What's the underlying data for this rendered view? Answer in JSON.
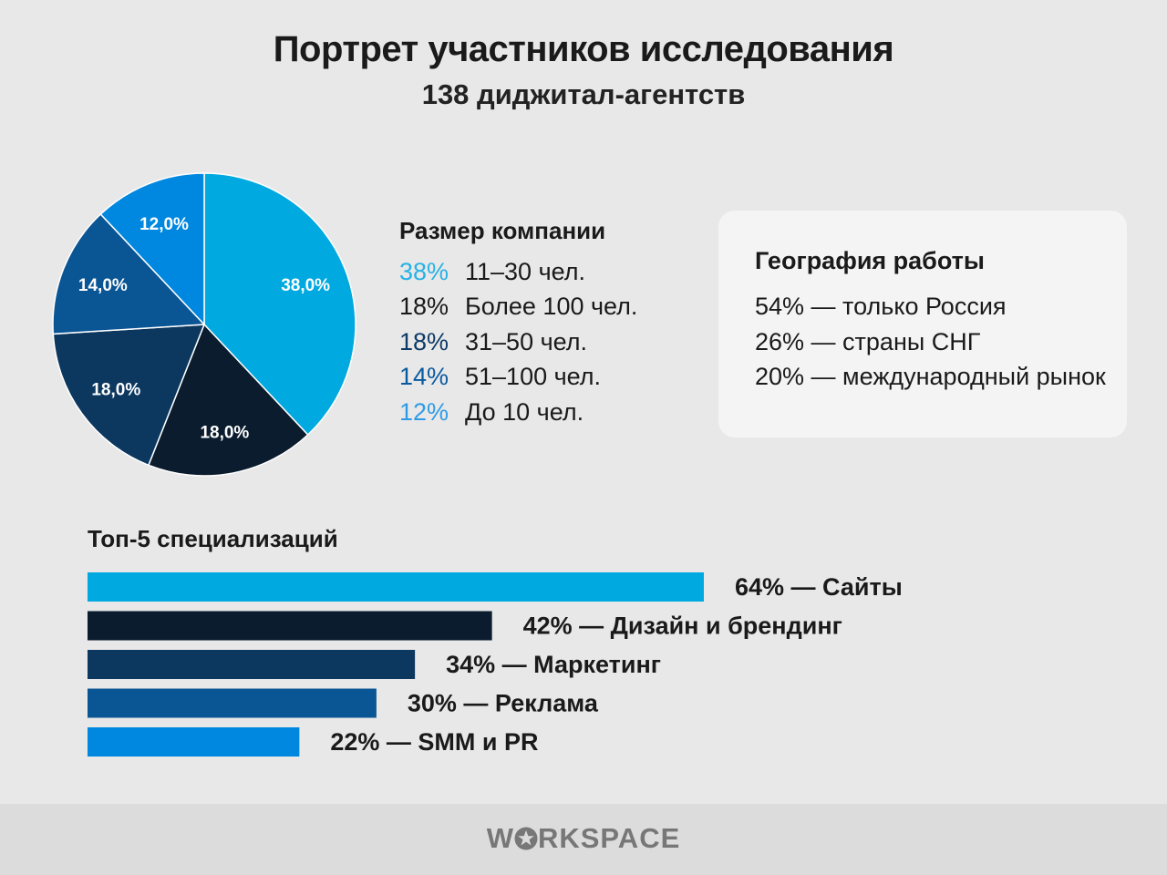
{
  "header": {
    "title": "Портрет участников исследования",
    "subtitle": "138 диджитал-агентств"
  },
  "chart_data": [
    {
      "type": "pie",
      "legend_title": "Размер компании",
      "slices": [
        {
          "value": 38,
          "label": "38,0%",
          "legend_pct": "38%",
          "legend_label": "11–30 чел.",
          "color": "#00a9e0",
          "legend_color": "#27b1e6"
        },
        {
          "value": 18,
          "label": "18,0%",
          "legend_pct": "18%",
          "legend_label": "Более 100 чел.",
          "color": "#0a1c2e",
          "legend_color": "#1a1a1a"
        },
        {
          "value": 18,
          "label": "18,0%",
          "legend_pct": "18%",
          "legend_label": "31–50 чел.",
          "color": "#0c3860",
          "legend_color": "#0d3a66"
        },
        {
          "value": 14,
          "label": "14,0%",
          "legend_pct": "14%",
          "legend_label": "51–100 чел.",
          "color": "#0a5594",
          "legend_color": "#0a5aa0"
        },
        {
          "value": 12,
          "label": "12,0%",
          "legend_pct": "12%",
          "legend_label": "До 10 чел.",
          "color": "#0088e0",
          "legend_color": "#2f9be6"
        }
      ]
    },
    {
      "type": "bar",
      "orientation": "horizontal",
      "title": "Топ-5 специализаций",
      "categories": [
        "Сайты",
        "Дизайн и брендинг",
        "Маркетинг",
        "Реклама",
        "SMM и PR"
      ],
      "values": [
        64,
        42,
        34,
        30,
        22
      ],
      "labels": [
        "64% — Сайты",
        "42% — Дизайн и брендинг",
        "34% — Маркетинг",
        "30% — Реклама",
        "22% — SMM и PR"
      ],
      "colors": [
        "#00a9e0",
        "#0a1c2e",
        "#0c3860",
        "#0a5594",
        "#0088e0"
      ]
    }
  ],
  "geography": {
    "title": "География работы",
    "items": [
      "54% — только Россия",
      "26% — страны СНГ",
      "20% — международный рынок"
    ]
  },
  "footer": {
    "logo_left": "W",
    "logo_right": "RKSPACE"
  }
}
